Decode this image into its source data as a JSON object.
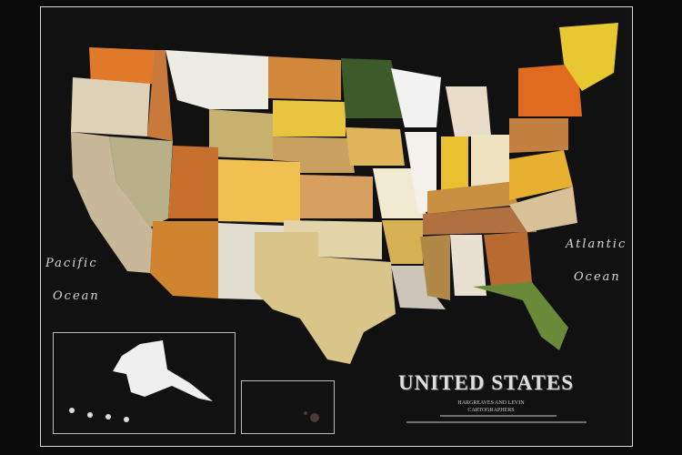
{
  "labels": {
    "pacific_line1": "Pacific",
    "pacific_line2": "Ocean",
    "atlantic_line1": "Atlantic",
    "atlantic_line2": "Ocean"
  },
  "title": {
    "main": "UNITED STATES",
    "line1": "HARGREAVES AND LEVIN",
    "line2": "CARTOGRAPHERS"
  },
  "colors": {
    "background": "#0b0b0b",
    "frame": "#d8d8d8"
  }
}
